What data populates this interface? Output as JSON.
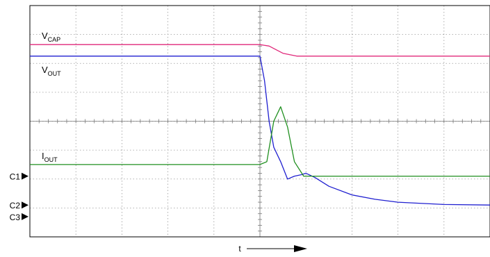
{
  "chart_data": {
    "type": "line",
    "title": "",
    "grid": true,
    "x_axis": {
      "label": "t",
      "divisions": 10,
      "ticks_per_division": 5,
      "arrow": "right"
    },
    "y_axis": {
      "divisions": 8,
      "ticks_per_division": 5
    },
    "xlim": [
      0,
      10
    ],
    "ylim": [
      0,
      8
    ],
    "event_division": 5.0,
    "channel_markers": [
      {
        "name": "C1",
        "level": 2.1
      },
      {
        "name": "C2",
        "level": 1.1
      },
      {
        "name": "C3",
        "level": 0.7
      }
    ],
    "series": [
      {
        "name": "V",
        "subscript": "CAP",
        "color": "#e0287a",
        "x": [
          0,
          1,
          2,
          3,
          4,
          5.0,
          5.2,
          5.5,
          5.8,
          6.5,
          8,
          10
        ],
        "y": [
          6.65,
          6.65,
          6.65,
          6.65,
          6.65,
          6.65,
          6.6,
          6.35,
          6.25,
          6.25,
          6.25,
          6.25
        ]
      },
      {
        "name": "V",
        "subscript": "OUT",
        "color": "#1f1fd0",
        "x": [
          0,
          1,
          2,
          3,
          4,
          5.0,
          5.1,
          5.2,
          5.3,
          5.45,
          5.6,
          5.75,
          5.9,
          6.0,
          6.2,
          6.5,
          7,
          7.5,
          8,
          9,
          10
        ],
        "y": [
          6.25,
          6.25,
          6.25,
          6.25,
          6.25,
          6.25,
          5.4,
          4.0,
          3.1,
          2.6,
          2.0,
          2.1,
          2.15,
          2.2,
          2.05,
          1.75,
          1.45,
          1.3,
          1.2,
          1.12,
          1.1
        ]
      },
      {
        "name": "I",
        "subscript": "OUT",
        "color": "#1f8f1f",
        "x": [
          0,
          1,
          2,
          3,
          4,
          5.0,
          5.15,
          5.3,
          5.45,
          5.6,
          5.75,
          5.95,
          6.2,
          7,
          8,
          9,
          10
        ],
        "y": [
          2.5,
          2.5,
          2.5,
          2.5,
          2.5,
          2.5,
          2.6,
          4.0,
          4.5,
          3.8,
          2.6,
          2.1,
          2.1,
          2.1,
          2.1,
          2.1,
          2.1
        ]
      }
    ]
  }
}
